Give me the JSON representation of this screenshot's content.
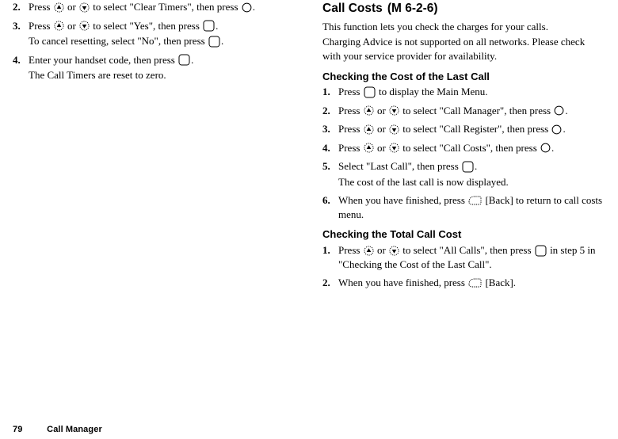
{
  "left": {
    "steps": [
      {
        "n": "2.",
        "parts": [
          "Press ",
          {
            "icon": "up"
          },
          " or ",
          {
            "icon": "down"
          },
          " to select \"Clear Timers\", then press ",
          {
            "icon": "dot"
          },
          "."
        ]
      },
      {
        "n": "3.",
        "parts": [
          "Press ",
          {
            "icon": "up"
          },
          " or ",
          {
            "icon": "down"
          },
          " to select \"Yes\", then press ",
          {
            "icon": "rsq"
          },
          "."
        ],
        "sub": [
          "To cancel resetting, select \"No\", then press ",
          {
            "icon": "rsq"
          },
          "."
        ]
      },
      {
        "n": "4.",
        "parts": [
          "Enter your handset code, then press ",
          {
            "icon": "rsq"
          },
          "."
        ],
        "sub": [
          "The Call Timers are reset to zero."
        ]
      }
    ]
  },
  "right": {
    "heading": "Call Costs",
    "menucode": "(M 6-2-6)",
    "intro1": "This function lets you check the charges for your calls.",
    "intro2": "Charging Advice is not supported on all networks. Please check with your service provider for availability.",
    "section1": "Checking the Cost of the Last Call",
    "steps1": [
      {
        "n": "1.",
        "parts": [
          "Press ",
          {
            "icon": "rsq"
          },
          " to display the Main Menu."
        ]
      },
      {
        "n": "2.",
        "parts": [
          "Press ",
          {
            "icon": "up"
          },
          " or ",
          {
            "icon": "down"
          },
          " to select \"Call Manager\", then press ",
          {
            "icon": "dot"
          },
          "."
        ]
      },
      {
        "n": "3.",
        "parts": [
          "Press ",
          {
            "icon": "up"
          },
          " or ",
          {
            "icon": "down"
          },
          " to select \"Call Register\", then press ",
          {
            "icon": "dot"
          },
          "."
        ]
      },
      {
        "n": "4.",
        "parts": [
          "Press ",
          {
            "icon": "up"
          },
          " or ",
          {
            "icon": "down"
          },
          " to select \"Call Costs\", then press ",
          {
            "icon": "dot"
          },
          "."
        ]
      },
      {
        "n": "5.",
        "parts": [
          "Select \"Last Call\", then press ",
          {
            "icon": "rsq"
          },
          "."
        ],
        "sub": [
          "The cost of the last call is now displayed."
        ]
      },
      {
        "n": "6.",
        "parts": [
          "When you have finished, press ",
          {
            "icon": "soft"
          },
          " [Back] to return to call costs menu."
        ]
      }
    ],
    "section2": "Checking the Total Call Cost",
    "steps2": [
      {
        "n": "1.",
        "parts": [
          "Press ",
          {
            "icon": "up"
          },
          " or ",
          {
            "icon": "down"
          },
          " to select \"All Calls\", then press ",
          {
            "icon": "rsq"
          },
          " in step 5 in \"Checking the Cost of the Last Call\"."
        ]
      },
      {
        "n": "2.",
        "parts": [
          "When you have finished, press ",
          {
            "icon": "soft"
          },
          " [Back]."
        ]
      }
    ]
  },
  "footer": {
    "page": "79",
    "chapter": "Call Manager"
  }
}
